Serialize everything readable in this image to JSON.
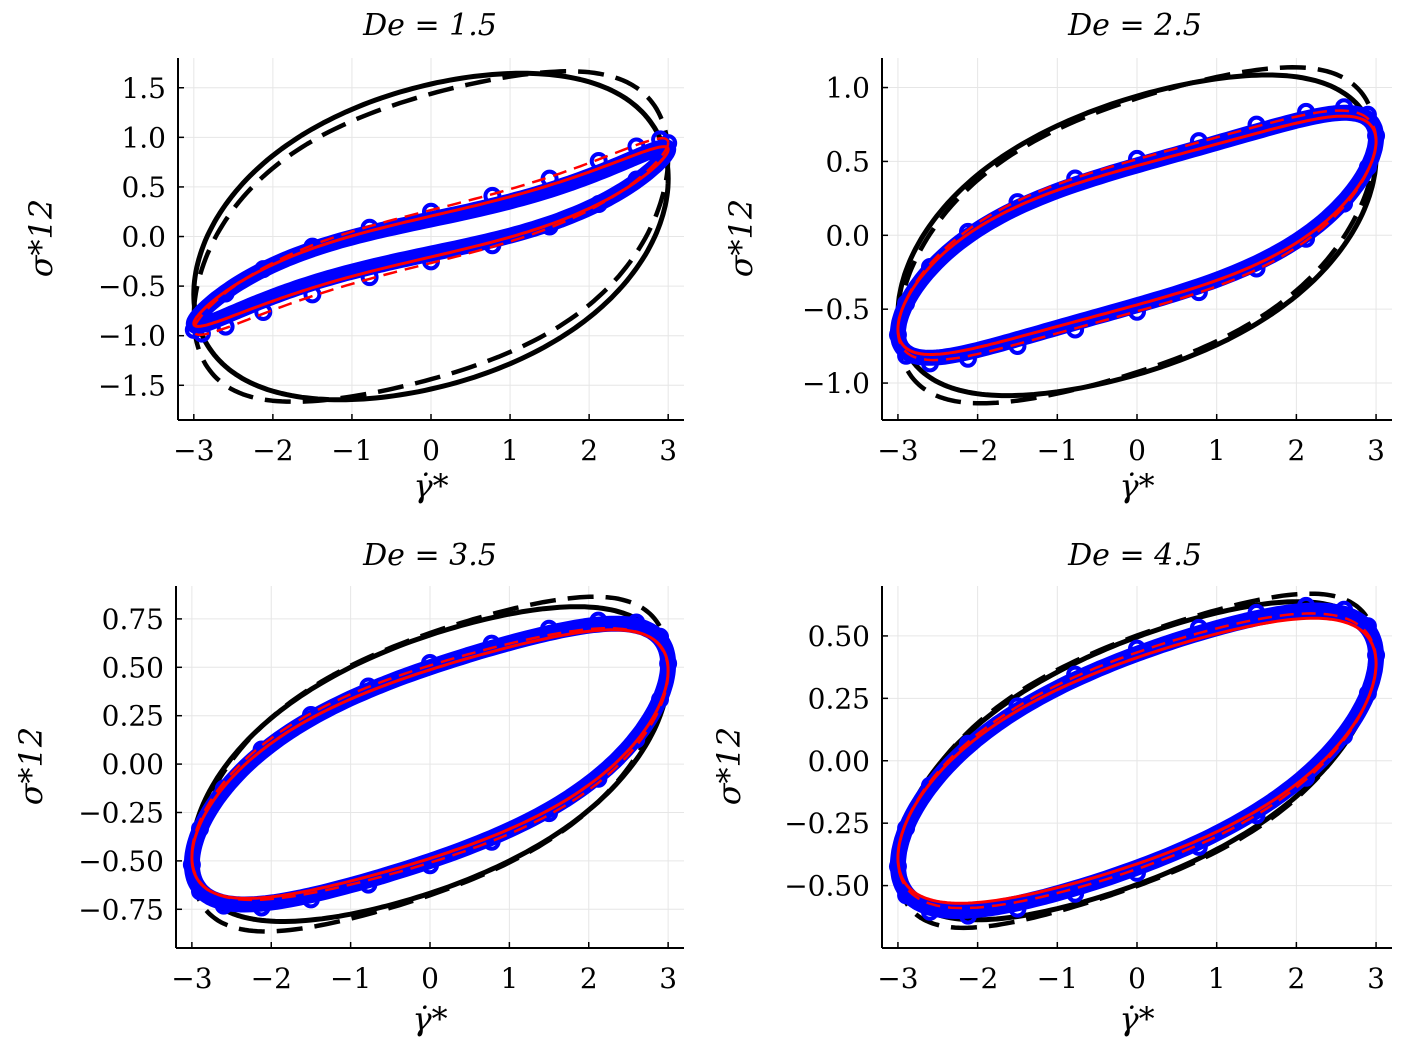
{
  "chart_data": [
    {
      "type": "line",
      "title": "De = 1.5",
      "xlabel": "γ̇*",
      "ylabel": "σ*12",
      "xlim": [
        -3.2,
        3.2
      ],
      "ylim": [
        -1.85,
        1.8
      ],
      "xticks": [
        -3,
        -2,
        -1,
        0,
        1,
        2,
        3
      ],
      "xtick_labels": [
        "−3",
        "−2",
        "−1",
        "0",
        "1",
        "2",
        "3"
      ],
      "yticks": [
        -1.5,
        -1.0,
        -0.5,
        0.0,
        0.5,
        1.0,
        1.5
      ],
      "ytick_labels": [
        "−1.5",
        "−1.0",
        "−0.5",
        "0.0",
        "0.5",
        "1.0",
        "1.5"
      ],
      "grid": true,
      "series": [
        {
          "color": "#000000",
          "style": "solid",
          "width": 5,
          "amplitude": 1.67,
          "phase_deg": 70,
          "distortion": 0.02
        },
        {
          "color": "#000000",
          "style": "dashed",
          "width": 4.5,
          "amplitude": 1.7,
          "phase_deg": 63,
          "distortion": 0.05
        },
        {
          "color": "#0000ff",
          "style": "solid",
          "width": 16,
          "amplitude": 0.81,
          "phase_deg": 14,
          "distortion": 0.12
        },
        {
          "color": "#0000ff",
          "style": "markers",
          "width": 4,
          "amplitude": 0.9,
          "phase_deg": 18,
          "distortion": 0.1
        },
        {
          "color": "#ff0000",
          "style": "solid",
          "width": 3,
          "amplitude": 0.83,
          "phase_deg": 16,
          "distortion": 0.1
        },
        {
          "color": "#ff0000",
          "style": "dashed",
          "width": 2.5,
          "amplitude": 0.91,
          "phase_deg": 19,
          "distortion": 0.1
        }
      ]
    },
    {
      "type": "line",
      "title": "De = 2.5",
      "xlabel": "γ̇*",
      "ylabel": "σ*12",
      "xlim": [
        -3.2,
        3.2
      ],
      "ylim": [
        -1.25,
        1.2
      ],
      "xticks": [
        -3,
        -2,
        -1,
        0,
        1,
        2,
        3
      ],
      "xtick_labels": [
        "−3",
        "−2",
        "−1",
        "0",
        "1",
        "2",
        "3"
      ],
      "yticks": [
        -1.0,
        -0.5,
        0.0,
        0.5,
        1.0
      ],
      "ytick_labels": [
        "−1.0",
        "−0.5",
        "0.0",
        "0.5",
        "1.0"
      ],
      "grid": true,
      "series": [
        {
          "color": "#000000",
          "style": "solid",
          "width": 5,
          "amplitude": 1.1,
          "phase_deg": 62,
          "distortion": 0.03
        },
        {
          "color": "#000000",
          "style": "dashed",
          "width": 4.5,
          "amplitude": 1.15,
          "phase_deg": 58,
          "distortion": 0.05
        },
        {
          "color": "#0000ff",
          "style": "solid",
          "width": 16,
          "amplitude": 0.8,
          "phase_deg": 40,
          "distortion": 0.08
        },
        {
          "color": "#0000ff",
          "style": "markers",
          "width": 4,
          "amplitude": 0.84,
          "phase_deg": 42,
          "distortion": 0.08
        },
        {
          "color": "#ff0000",
          "style": "solid",
          "width": 3,
          "amplitude": 0.78,
          "phase_deg": 41,
          "distortion": 0.08
        },
        {
          "color": "#ff0000",
          "style": "dashed",
          "width": 2.5,
          "amplitude": 0.82,
          "phase_deg": 43,
          "distortion": 0.08
        }
      ]
    },
    {
      "type": "line",
      "title": "De = 3.5",
      "xlabel": "γ̇*",
      "ylabel": "σ*12",
      "xlim": [
        -3.2,
        3.2
      ],
      "ylim": [
        -0.95,
        0.92
      ],
      "xticks": [
        -3,
        -2,
        -1,
        0,
        1,
        2,
        3
      ],
      "xtick_labels": [
        "−3",
        "−2",
        "−1",
        "0",
        "1",
        "2",
        "3"
      ],
      "yticks": [
        -0.75,
        -0.5,
        -0.25,
        0.0,
        0.25,
        0.5,
        0.75
      ],
      "ytick_labels": [
        "−0.75",
        "−0.50",
        "−0.25",
        "0.00",
        "0.25",
        "0.50",
        "0.75"
      ],
      "grid": true,
      "series": [
        {
          "color": "#000000",
          "style": "solid",
          "width": 5,
          "amplitude": 0.82,
          "phase_deg": 57,
          "distortion": 0.03
        },
        {
          "color": "#000000",
          "style": "dashed",
          "width": 4.5,
          "amplitude": 0.87,
          "phase_deg": 55,
          "distortion": 0.05
        },
        {
          "color": "#0000ff",
          "style": "solid",
          "width": 16,
          "amplitude": 0.72,
          "phase_deg": 47,
          "distortion": 0.05
        },
        {
          "color": "#0000ff",
          "style": "markers",
          "width": 4,
          "amplitude": 0.74,
          "phase_deg": 48,
          "distortion": 0.05
        },
        {
          "color": "#ff0000",
          "style": "solid",
          "width": 3,
          "amplitude": 0.69,
          "phase_deg": 48,
          "distortion": 0.05
        },
        {
          "color": "#ff0000",
          "style": "dashed",
          "width": 2.5,
          "amplitude": 0.7,
          "phase_deg": 50,
          "distortion": 0.05
        }
      ]
    },
    {
      "type": "line",
      "title": "De = 4.5",
      "xlabel": "γ̇*",
      "ylabel": "σ*12",
      "xlim": [
        -3.2,
        3.2
      ],
      "ylim": [
        -0.75,
        0.7
      ],
      "xticks": [
        -3,
        -2,
        -1,
        0,
        1,
        2,
        3
      ],
      "xtick_labels": [
        "−3",
        "−2",
        "−1",
        "0",
        "1",
        "2",
        "3"
      ],
      "yticks": [
        -0.5,
        -0.25,
        0.0,
        0.25,
        0.5
      ],
      "ytick_labels": [
        "−0.50",
        "−0.25",
        "0.00",
        "0.25",
        "0.50"
      ],
      "grid": true,
      "series": [
        {
          "color": "#000000",
          "style": "solid",
          "width": 5,
          "amplitude": 0.64,
          "phase_deg": 53,
          "distortion": 0.03
        },
        {
          "color": "#000000",
          "style": "dashed",
          "width": 4.5,
          "amplitude": 0.67,
          "phase_deg": 52,
          "distortion": 0.05
        },
        {
          "color": "#0000ff",
          "style": "solid",
          "width": 16,
          "amplitude": 0.6,
          "phase_deg": 48,
          "distortion": 0.04
        },
        {
          "color": "#0000ff",
          "style": "markers",
          "width": 4,
          "amplitude": 0.62,
          "phase_deg": 49,
          "distortion": 0.04
        },
        {
          "color": "#ff0000",
          "style": "solid",
          "width": 3,
          "amplitude": 0.57,
          "phase_deg": 49,
          "distortion": 0.04
        },
        {
          "color": "#ff0000",
          "style": "dashed",
          "width": 2.5,
          "amplitude": 0.59,
          "phase_deg": 50,
          "distortion": 0.04
        }
      ]
    }
  ]
}
